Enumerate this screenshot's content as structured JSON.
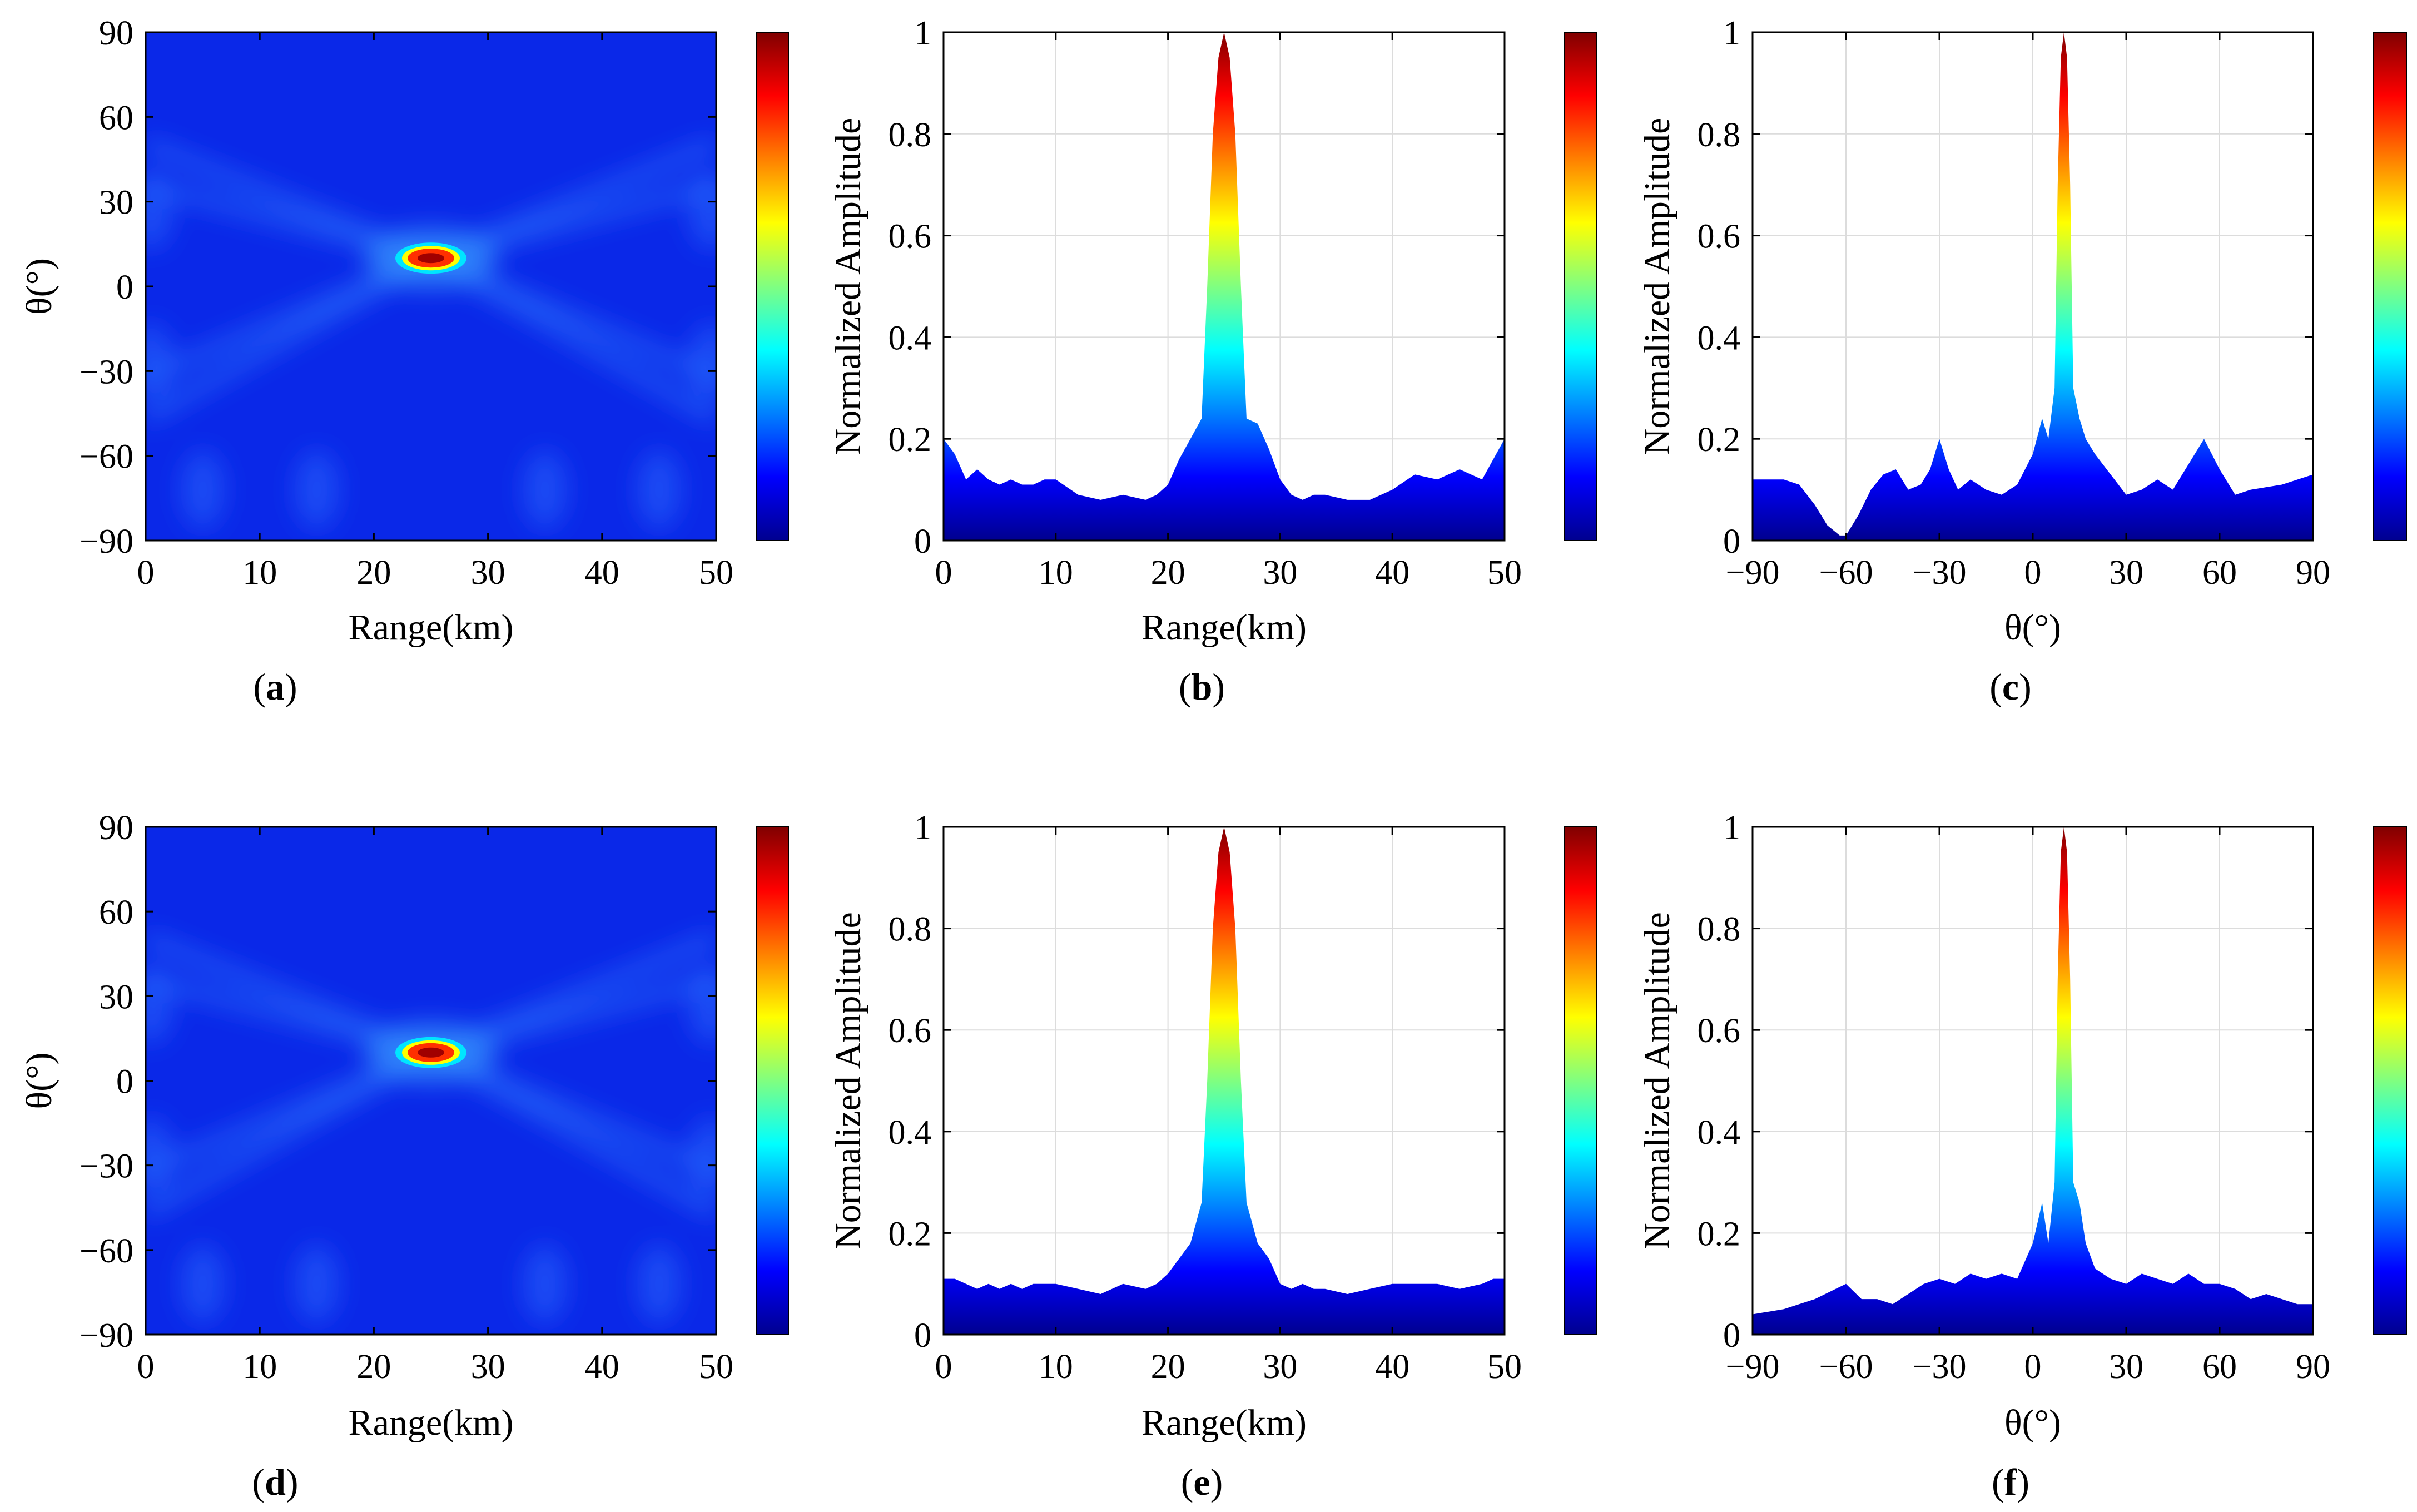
{
  "figure": {
    "colormap": [
      "#00008f",
      "#0000ff",
      "#0080ff",
      "#00ffff",
      "#80ff80",
      "#ffff00",
      "#ff8000",
      "#ff0000",
      "#800000"
    ],
    "heatmap_background": "#0a28e8",
    "panel_labels": [
      "a",
      "b",
      "c",
      "d",
      "e",
      "f"
    ]
  },
  "chart_data": [
    {
      "id": "a",
      "type": "heatmap",
      "title": "",
      "xlabel": "Range(km)",
      "ylabel": "θ(°)",
      "xlim": [
        0,
        50
      ],
      "ylim": [
        -90,
        90
      ],
      "xticks": [
        "0",
        "10",
        "20",
        "30",
        "40",
        "50"
      ],
      "yticks": [
        "90",
        "60",
        "30",
        "0",
        "−30",
        "−60",
        "−90"
      ],
      "peak": {
        "range_km": 25,
        "theta_deg": 10,
        "value": 1.0
      },
      "colorbar": true,
      "label": "(a)"
    },
    {
      "id": "b",
      "type": "area",
      "xlabel": "Range(km)",
      "ylabel": "Normalized Amplitude",
      "xlim": [
        0,
        50
      ],
      "ylim": [
        0,
        1
      ],
      "xticks": [
        "0",
        "10",
        "20",
        "30",
        "40",
        "50"
      ],
      "yticks": [
        "1",
        "0.8",
        "0.6",
        "0.4",
        "0.2",
        "0"
      ],
      "x": [
        0,
        1,
        2,
        3,
        4,
        5,
        6,
        7,
        8,
        9,
        10,
        12,
        14,
        16,
        18,
        19,
        20,
        21,
        22,
        23,
        23.5,
        24,
        24.5,
        25,
        25.5,
        26,
        26.5,
        27,
        28,
        29,
        30,
        31,
        32,
        33,
        34,
        36,
        38,
        40,
        42,
        44,
        46,
        48,
        49,
        50
      ],
      "values": [
        0.2,
        0.17,
        0.12,
        0.14,
        0.12,
        0.11,
        0.12,
        0.11,
        0.11,
        0.12,
        0.12,
        0.09,
        0.08,
        0.09,
        0.08,
        0.09,
        0.11,
        0.16,
        0.2,
        0.24,
        0.5,
        0.8,
        0.95,
        1.0,
        0.95,
        0.8,
        0.5,
        0.24,
        0.23,
        0.18,
        0.12,
        0.09,
        0.08,
        0.09,
        0.09,
        0.08,
        0.08,
        0.1,
        0.13,
        0.12,
        0.14,
        0.12,
        0.16,
        0.2
      ],
      "colorbar": true,
      "label": "(b)"
    },
    {
      "id": "c",
      "type": "area",
      "xlabel": "θ(°)",
      "ylabel": "Normalized Amplitude",
      "xlim": [
        -90,
        90
      ],
      "ylim": [
        0,
        1
      ],
      "xticks": [
        "−90",
        "−60",
        "−30",
        "0",
        "30",
        "60",
        "90"
      ],
      "yticks": [
        "1",
        "0.8",
        "0.6",
        "0.4",
        "0.2",
        "0"
      ],
      "x": [
        -90,
        -80,
        -75,
        -70,
        -66,
        -62,
        -60,
        -56,
        -52,
        -48,
        -44,
        -40,
        -36,
        -33,
        -30,
        -27,
        -24,
        -20,
        -15,
        -10,
        -5,
        0,
        3,
        5,
        7,
        8,
        9,
        10,
        11,
        12,
        13,
        15,
        17,
        20,
        25,
        30,
        35,
        40,
        45,
        50,
        55,
        60,
        65,
        70,
        80,
        90
      ],
      "values": [
        0.12,
        0.12,
        0.11,
        0.07,
        0.03,
        0.01,
        0.01,
        0.05,
        0.1,
        0.13,
        0.14,
        0.1,
        0.11,
        0.14,
        0.2,
        0.14,
        0.1,
        0.12,
        0.1,
        0.09,
        0.11,
        0.17,
        0.24,
        0.2,
        0.3,
        0.7,
        0.95,
        1.0,
        0.95,
        0.7,
        0.3,
        0.24,
        0.2,
        0.17,
        0.13,
        0.09,
        0.1,
        0.12,
        0.1,
        0.15,
        0.2,
        0.14,
        0.09,
        0.1,
        0.11,
        0.13
      ],
      "colorbar": true,
      "label": "(c)"
    },
    {
      "id": "d",
      "type": "heatmap",
      "title": "",
      "xlabel": "Range(km)",
      "ylabel": "θ(°)",
      "xlim": [
        0,
        50
      ],
      "ylim": [
        -90,
        90
      ],
      "xticks": [
        "0",
        "10",
        "20",
        "30",
        "40",
        "50"
      ],
      "yticks": [
        "90",
        "60",
        "30",
        "0",
        "−30",
        "−60",
        "−90"
      ],
      "peak": {
        "range_km": 25,
        "theta_deg": 10,
        "value": 1.0
      },
      "colorbar": true,
      "label": "(d)"
    },
    {
      "id": "e",
      "type": "area",
      "xlabel": "Range(km)",
      "ylabel": "Normalized Amplitude",
      "xlim": [
        0,
        50
      ],
      "ylim": [
        0,
        1
      ],
      "xticks": [
        "0",
        "10",
        "20",
        "30",
        "40",
        "50"
      ],
      "yticks": [
        "1",
        "0.8",
        "0.6",
        "0.4",
        "0.2",
        "0"
      ],
      "x": [
        0,
        1,
        2,
        3,
        4,
        5,
        6,
        7,
        8,
        9,
        10,
        12,
        14,
        16,
        18,
        19,
        20,
        21,
        22,
        23,
        23.5,
        24,
        24.5,
        25,
        25.5,
        26,
        26.5,
        27,
        28,
        29,
        30,
        31,
        32,
        33,
        34,
        36,
        38,
        40,
        42,
        44,
        46,
        48,
        49,
        50
      ],
      "values": [
        0.11,
        0.11,
        0.1,
        0.09,
        0.1,
        0.09,
        0.1,
        0.09,
        0.1,
        0.1,
        0.1,
        0.09,
        0.08,
        0.1,
        0.09,
        0.1,
        0.12,
        0.15,
        0.18,
        0.26,
        0.5,
        0.8,
        0.95,
        1.0,
        0.95,
        0.8,
        0.5,
        0.26,
        0.18,
        0.15,
        0.1,
        0.09,
        0.1,
        0.09,
        0.09,
        0.08,
        0.09,
        0.1,
        0.1,
        0.1,
        0.09,
        0.1,
        0.11,
        0.11
      ],
      "colorbar": true,
      "label": "(e)"
    },
    {
      "id": "f",
      "type": "area",
      "xlabel": "θ(°)",
      "ylabel": "Normalized Amplitude",
      "xlim": [
        -90,
        90
      ],
      "ylim": [
        0,
        1
      ],
      "xticks": [
        "−90",
        "−60",
        "−30",
        "0",
        "30",
        "60",
        "90"
      ],
      "yticks": [
        "1",
        "0.8",
        "0.6",
        "0.4",
        "0.2",
        "0"
      ],
      "x": [
        -90,
        -80,
        -70,
        -60,
        -55,
        -50,
        -45,
        -40,
        -35,
        -30,
        -25,
        -20,
        -15,
        -10,
        -5,
        0,
        3,
        5,
        7,
        8,
        9,
        10,
        11,
        12,
        13,
        15,
        17,
        20,
        25,
        30,
        35,
        40,
        45,
        50,
        55,
        60,
        65,
        70,
        75,
        80,
        85,
        90
      ],
      "values": [
        0.04,
        0.05,
        0.07,
        0.1,
        0.07,
        0.07,
        0.06,
        0.08,
        0.1,
        0.11,
        0.1,
        0.12,
        0.11,
        0.12,
        0.11,
        0.18,
        0.26,
        0.18,
        0.3,
        0.7,
        0.95,
        1.0,
        0.95,
        0.7,
        0.3,
        0.26,
        0.18,
        0.13,
        0.11,
        0.1,
        0.12,
        0.11,
        0.1,
        0.12,
        0.1,
        0.1,
        0.09,
        0.07,
        0.08,
        0.07,
        0.06,
        0.06
      ],
      "colorbar": true,
      "label": "(f)"
    }
  ]
}
